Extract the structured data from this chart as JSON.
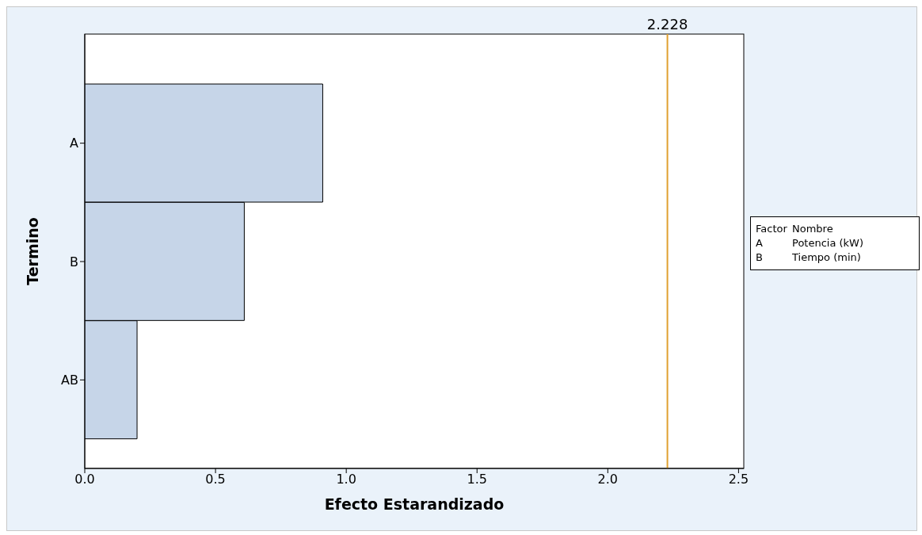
{
  "chart_data": {
    "type": "bar",
    "orientation": "horizontal",
    "xlabel": "Efecto Estarandizado",
    "ylabel": "Termino",
    "categories": [
      "A",
      "B",
      "AB"
    ],
    "values": [
      0.91,
      0.61,
      0.2
    ],
    "color": "#c6d5e8",
    "xlim": [
      0,
      2.52
    ],
    "xticks": [
      {
        "value": 0,
        "label": "0.0"
      },
      {
        "value": 0.5,
        "label": "0.5"
      },
      {
        "value": 1,
        "label": "1.0"
      },
      {
        "value": 1.5,
        "label": "1.5"
      },
      {
        "value": 2,
        "label": "2.0"
      },
      {
        "value": 2.5,
        "label": "2.5"
      }
    ],
    "ref_lines": [
      {
        "axis": "x",
        "value": 2.228,
        "label": "2.228",
        "color": "#e0a030"
      }
    ],
    "annotations": [
      "Factor\tNombre",
      "A\tPotencia (kW)",
      "B\tTiempo (min)"
    ]
  }
}
